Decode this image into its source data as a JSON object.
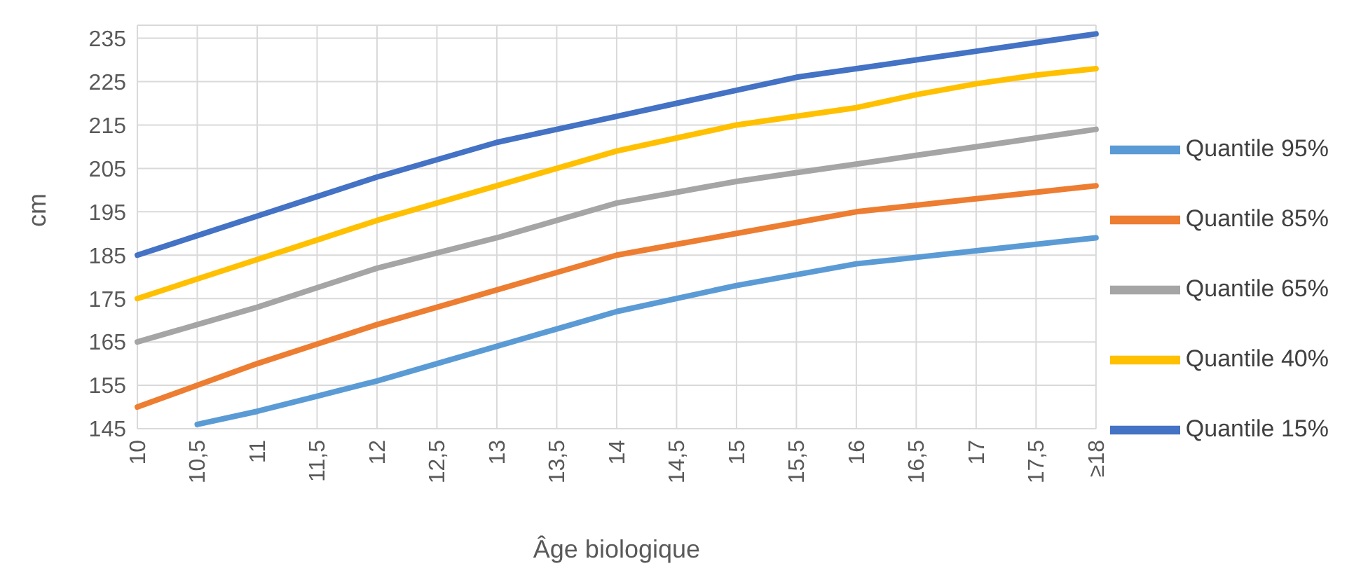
{
  "chart_data": {
    "type": "line",
    "xlabel": "Âge biologique",
    "ylabel": "cm",
    "categories": [
      "10",
      "10,5",
      "11",
      "11,5",
      "12",
      "12,5",
      "13",
      "13,5",
      "14",
      "14,5",
      "15",
      "15,5",
      "16",
      "16,5",
      "17",
      "17,5",
      "≥18"
    ],
    "series": [
      {
        "name": "Quantile 95%",
        "color": "#5b9bd5",
        "values": [
          null,
          146,
          149,
          152.5,
          156,
          160,
          164,
          168,
          172,
          175,
          178,
          180.5,
          183,
          184.5,
          186,
          187.5,
          189
        ]
      },
      {
        "name": "Quantile 85%",
        "color": "#ed7d31",
        "values": [
          150,
          155,
          160,
          164.5,
          169,
          173,
          177,
          181,
          185,
          187.5,
          190,
          192.5,
          195,
          196.5,
          198,
          199.5,
          201
        ]
      },
      {
        "name": "Quantile 65%",
        "color": "#a5a5a5",
        "values": [
          165,
          169,
          173,
          177.5,
          182,
          185.5,
          189,
          193,
          197,
          199.5,
          202,
          204,
          206,
          208,
          210,
          212,
          214
        ]
      },
      {
        "name": "Quantile 40%",
        "color": "#ffc000",
        "values": [
          175,
          179.5,
          184,
          188.5,
          193,
          197,
          201,
          205,
          209,
          212,
          215,
          217,
          219,
          222,
          224.5,
          226.5,
          228
        ]
      },
      {
        "name": "Quantile 15%",
        "color": "#4472c4",
        "values": [
          185,
          189.5,
          194,
          198.5,
          203,
          207,
          211,
          214,
          217,
          220,
          223,
          226,
          228,
          230,
          232,
          234,
          236
        ]
      }
    ],
    "ylim": [
      145,
      238
    ],
    "yticks": [
      145,
      155,
      165,
      175,
      185,
      195,
      205,
      215,
      225,
      235
    ],
    "grid": true,
    "legend": "right",
    "marker": "none",
    "line_style": "solid"
  }
}
